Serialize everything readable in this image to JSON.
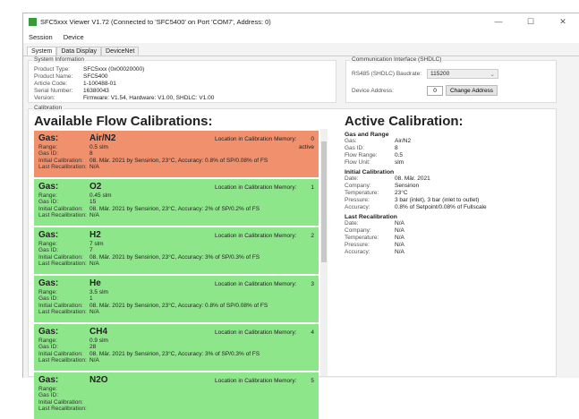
{
  "window": {
    "title": "SFC5xxx Viewer V1.72 (Connected to 'SFC5400' on Port 'COM7', Address: 0)",
    "controls": [
      "—",
      "☐",
      "✕"
    ]
  },
  "menu": [
    "Session",
    "Device"
  ],
  "tabs": [
    {
      "label": "System",
      "active": true
    },
    {
      "label": "Data Display"
    },
    {
      "label": "DeviceNet"
    }
  ],
  "system_info": {
    "title": "System Information",
    "rows": [
      [
        "Product Type:",
        "SFC5xxx (0x00020000)"
      ],
      [
        "Product Name:",
        "SFC5400"
      ],
      [
        "Article Code:",
        "1-100488-01"
      ],
      [
        "Serial Number:",
        "16380043"
      ],
      [
        "Version:",
        "Firmware: V1.54, Hardware: V1.00, SHDLC: V1.00"
      ]
    ]
  },
  "comm": {
    "title": "Communication Interface (SHDLC)",
    "baud_label": "RS485 (SHDLC) Baudrate:",
    "baud_value": "115200",
    "addr_label": "Device Address:",
    "addr_value": "0",
    "change_button": "Change Address"
  },
  "calibration": {
    "title": "Calibration",
    "available_heading": "Available Flow Calibrations:",
    "gas_label": "Gas:",
    "loc_label": "Location in Calibration Memory:",
    "labels": {
      "range": "Range:",
      "gasid": "Gas ID:",
      "initial": "Initial Calibration:",
      "last": "Last Recalibration:"
    },
    "active_color": "#f0906c",
    "inactive_color": "#8ee68a",
    "items": [
      {
        "gas": "Air/N2",
        "loc": "0",
        "status": "active",
        "range": "0.5 slm",
        "gasid": "8",
        "initial": "08. Mär. 2021 by Sensirion, 23°C, Accuracy: 0.8% of SP/0.08% of FS",
        "last": "N/A"
      },
      {
        "gas": "O2",
        "loc": "1",
        "status": "",
        "range": "0.45 slm",
        "gasid": "15",
        "initial": "08. Mär. 2021 by Sensirion, 23°C, Accuracy: 2% of SP/0.2% of FS",
        "last": "N/A"
      },
      {
        "gas": "H2",
        "loc": "2",
        "status": "",
        "range": "7 slm",
        "gasid": "7",
        "initial": "08. Mär. 2021 by Sensirion, 23°C, Accuracy: 3% of SP/0.3% of FS",
        "last": "N/A"
      },
      {
        "gas": "He",
        "loc": "3",
        "status": "",
        "range": "3.5 slm",
        "gasid": "1",
        "initial": "08. Mär. 2021 by Sensirion, 23°C, Accuracy: 0.8% of SP/0.08% of FS",
        "last": "N/A"
      },
      {
        "gas": "CH4",
        "loc": "4",
        "status": "",
        "range": "0.9 slm",
        "gasid": "28",
        "initial": "08. Mär. 2021 by Sensirion, 23°C, Accuracy: 3% of SP/0.3% of FS",
        "last": "N/A"
      },
      {
        "gas": "N2O",
        "loc": "5",
        "status": "",
        "range": "",
        "gasid": "",
        "initial": "",
        "last": ""
      }
    ]
  },
  "active": {
    "heading": "Active Calibration:",
    "sections": [
      {
        "title": "Gas and Range",
        "rows": [
          [
            "Gas:",
            "Air/N2"
          ],
          [
            "Gas ID:",
            "8"
          ],
          [
            "Flow Range:",
            "0.5"
          ],
          [
            "Flow Unit:",
            "slm"
          ]
        ]
      },
      {
        "title": "Initial Calibration",
        "rows": [
          [
            "Date:",
            "08. Mär. 2021"
          ],
          [
            "Company:",
            "Sensirion"
          ],
          [
            "Temperature:",
            "23°C"
          ],
          [
            "Pressure:",
            "3 bar (inlet), 3 bar (inlet to outlet)"
          ],
          [
            "Accuracy:",
            "0.8% of Setpoint/0.08% of Fullscale"
          ]
        ]
      },
      {
        "title": "Last Recalibration",
        "rows": [
          [
            "Date:",
            "N/A"
          ],
          [
            "Company:",
            "N/A"
          ],
          [
            "Temperature:",
            "N/A"
          ],
          [
            "Pressure:",
            "N/A"
          ],
          [
            "Accuracy:",
            "N/A"
          ]
        ]
      }
    ]
  }
}
